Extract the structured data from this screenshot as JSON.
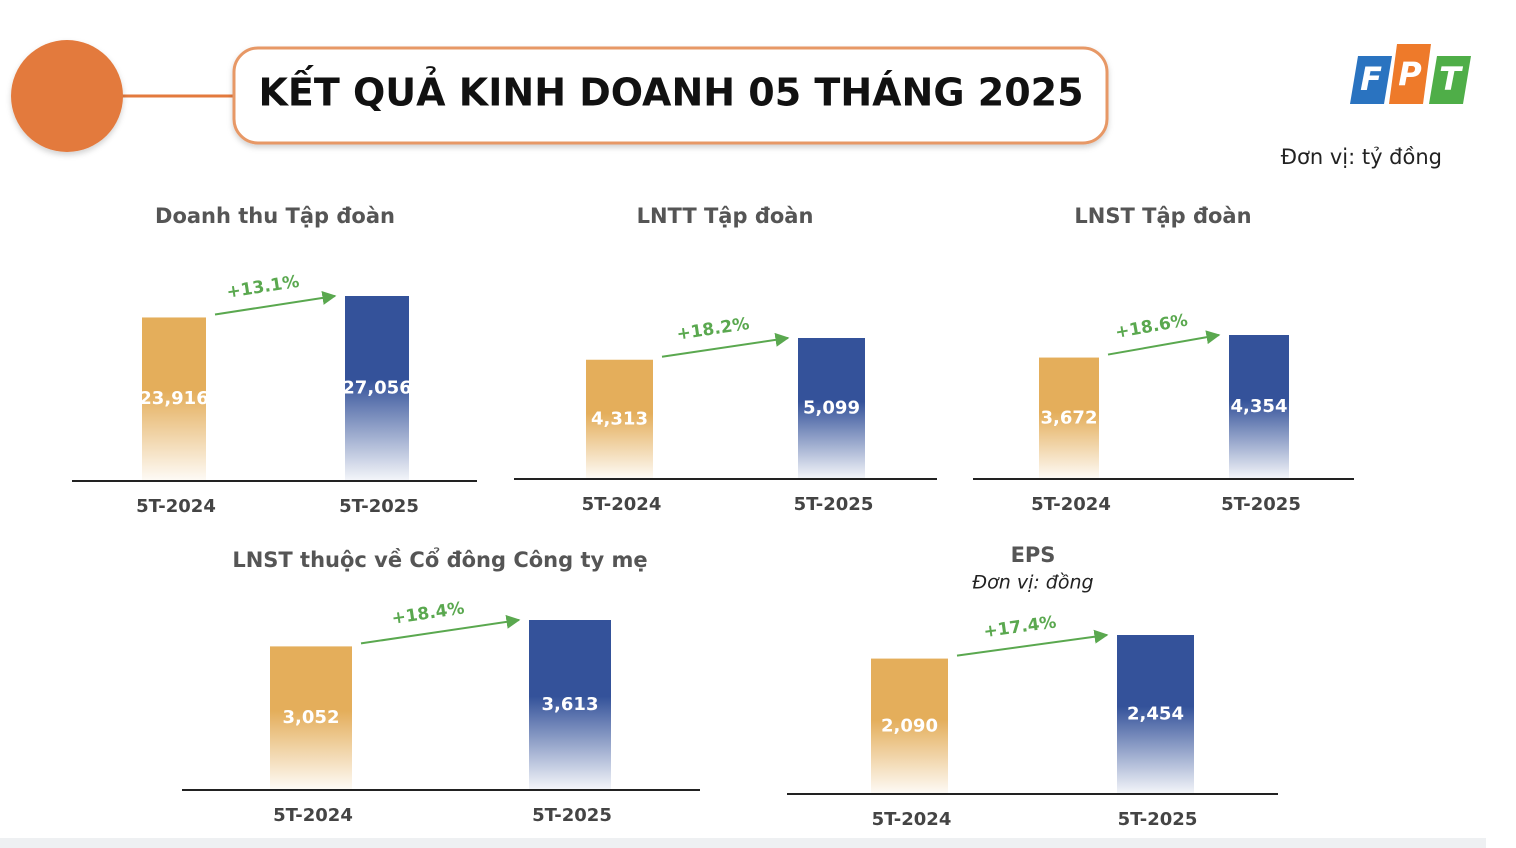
{
  "header": {
    "title": "KẾT QUẢ KINH DOANH 05 THÁNG 2025",
    "unit": "Đơn vị: tỷ đồng",
    "logo": [
      "F",
      "P",
      "T"
    ]
  },
  "chart_data": [
    {
      "type": "bar",
      "title": "Doanh thu Tập đoàn",
      "categories": [
        "5T-2024",
        "5T-2025"
      ],
      "values": [
        23916,
        27056
      ],
      "value_labels": [
        "23,916",
        "27,056"
      ],
      "colors": [
        "#e4ae5b",
        "#34529a"
      ],
      "annotation": "+13.1%"
    },
    {
      "type": "bar",
      "title": "LNTT Tập đoàn",
      "categories": [
        "5T-2024",
        "5T-2025"
      ],
      "values": [
        4313,
        5099
      ],
      "value_labels": [
        "4,313",
        "5,099"
      ],
      "colors": [
        "#e4ae5b",
        "#34529a"
      ],
      "annotation": "+18.2%"
    },
    {
      "type": "bar",
      "title": "LNST Tập đoàn",
      "categories": [
        "5T-2024",
        "5T-2025"
      ],
      "values": [
        3672,
        4354
      ],
      "value_labels": [
        "3,672",
        "4,354"
      ],
      "colors": [
        "#e4ae5b",
        "#34529a"
      ],
      "annotation": "+18.6%"
    },
    {
      "type": "bar",
      "title": "LNST thuộc về Cổ đông Công ty mẹ",
      "categories": [
        "5T-2024",
        "5T-2025"
      ],
      "values": [
        3052,
        3613
      ],
      "value_labels": [
        "3,052",
        "3,613"
      ],
      "colors": [
        "#e4ae5b",
        "#34529a"
      ],
      "annotation": "+18.4%"
    },
    {
      "type": "bar",
      "title": "EPS",
      "subtitle": "Đơn vị: đồng",
      "categories": [
        "5T-2024",
        "5T-2025"
      ],
      "values": [
        2090,
        2454
      ],
      "value_labels": [
        "2,090",
        "2,454"
      ],
      "colors": [
        "#e4ae5b",
        "#34529a"
      ],
      "annotation": "+17.4%"
    }
  ]
}
